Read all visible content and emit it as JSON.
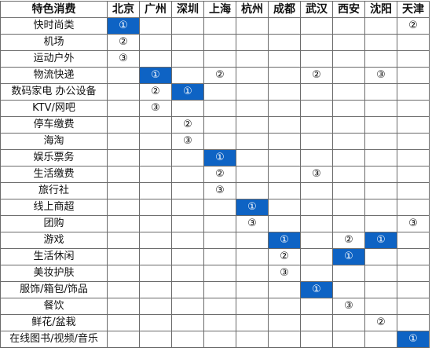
{
  "table": {
    "corner_label": "特色消费",
    "cities": [
      "北京",
      "广州",
      "深圳",
      "上海",
      "杭州",
      "成都",
      "武汉",
      "西安",
      "沈阳",
      "天津"
    ],
    "highlight_color": "#0e63c4",
    "rows": [
      {
        "label": "快时尚类",
        "cells": [
          "①",
          "",
          "",
          "",
          "",
          "",
          "",
          "",
          "",
          "②"
        ],
        "highlight": [
          0
        ]
      },
      {
        "label": "机场",
        "cells": [
          "②",
          "",
          "",
          "",
          "",
          "",
          "",
          "",
          "",
          ""
        ],
        "highlight": []
      },
      {
        "label": "运动户外",
        "cells": [
          "③",
          "",
          "",
          "",
          "",
          "",
          "",
          "",
          "",
          ""
        ],
        "highlight": []
      },
      {
        "label": "物流快递",
        "cells": [
          "",
          "①",
          "",
          "②",
          "",
          "",
          "②",
          "",
          "③",
          ""
        ],
        "highlight": [
          1
        ]
      },
      {
        "label": "数码家电 办公设备",
        "cells": [
          "",
          "②",
          "①",
          "",
          "",
          "",
          "",
          "",
          "",
          ""
        ],
        "highlight": [
          2
        ]
      },
      {
        "label": "KTV/网吧",
        "cells": [
          "",
          "③",
          "",
          "",
          "",
          "",
          "",
          "",
          "",
          ""
        ],
        "highlight": []
      },
      {
        "label": "停车缴费",
        "cells": [
          "",
          "",
          "②",
          "",
          "",
          "",
          "",
          "",
          "",
          ""
        ],
        "highlight": []
      },
      {
        "label": "海淘",
        "cells": [
          "",
          "",
          "③",
          "",
          "",
          "",
          "",
          "",
          "",
          ""
        ],
        "highlight": []
      },
      {
        "label": "娱乐票务",
        "cells": [
          "",
          "",
          "",
          "①",
          "",
          "",
          "",
          "",
          "",
          ""
        ],
        "highlight": [
          3
        ]
      },
      {
        "label": "生活缴费",
        "cells": [
          "",
          "",
          "",
          "②",
          "",
          "",
          "③",
          "",
          "",
          ""
        ],
        "highlight": []
      },
      {
        "label": "旅行社",
        "cells": [
          "",
          "",
          "",
          "③",
          "",
          "",
          "",
          "",
          "",
          ""
        ],
        "highlight": []
      },
      {
        "label": "线上商超",
        "cells": [
          "",
          "",
          "",
          "",
          "①",
          "",
          "",
          "",
          "",
          ""
        ],
        "highlight": [
          4
        ]
      },
      {
        "label": "团购",
        "cells": [
          "",
          "",
          "",
          "",
          "③",
          "",
          "",
          "",
          "",
          "③"
        ],
        "highlight": []
      },
      {
        "label": "游戏",
        "cells": [
          "",
          "",
          "",
          "",
          "",
          "①",
          "",
          "②",
          "①",
          ""
        ],
        "highlight": [
          5,
          8
        ]
      },
      {
        "label": "生活休闲",
        "cells": [
          "",
          "",
          "",
          "",
          "",
          "②",
          "",
          "①",
          "",
          ""
        ],
        "highlight": [
          7
        ]
      },
      {
        "label": "美妆护肤",
        "cells": [
          "",
          "",
          "",
          "",
          "",
          "③",
          "",
          "",
          "",
          ""
        ],
        "highlight": []
      },
      {
        "label": "服饰/箱包/饰品",
        "cells": [
          "",
          "",
          "",
          "",
          "",
          "",
          "①",
          "",
          "",
          ""
        ],
        "highlight": [
          6
        ]
      },
      {
        "label": "餐饮",
        "cells": [
          "",
          "",
          "",
          "",
          "",
          "",
          "",
          "③",
          "",
          ""
        ],
        "highlight": []
      },
      {
        "label": "鲜花/盆栽",
        "cells": [
          "",
          "",
          "",
          "",
          "",
          "",
          "",
          "",
          "②",
          ""
        ],
        "highlight": []
      },
      {
        "label": "在线图书/视频/音乐",
        "cells": [
          "",
          "",
          "",
          "",
          "",
          "",
          "",
          "",
          "",
          "①"
        ],
        "highlight": [
          9
        ]
      }
    ]
  }
}
